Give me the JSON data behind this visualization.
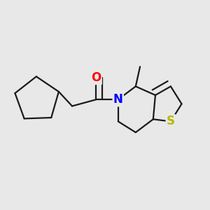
{
  "bg_color": "#e8e8e8",
  "atom_colors": {
    "O": "#ff0000",
    "N": "#0000ff",
    "S": "#b8b800",
    "C": "#000000"
  },
  "bond_color": "#1a1a1a",
  "bond_width": 1.6,
  "figsize": [
    3.0,
    3.0
  ],
  "dpi": 100
}
